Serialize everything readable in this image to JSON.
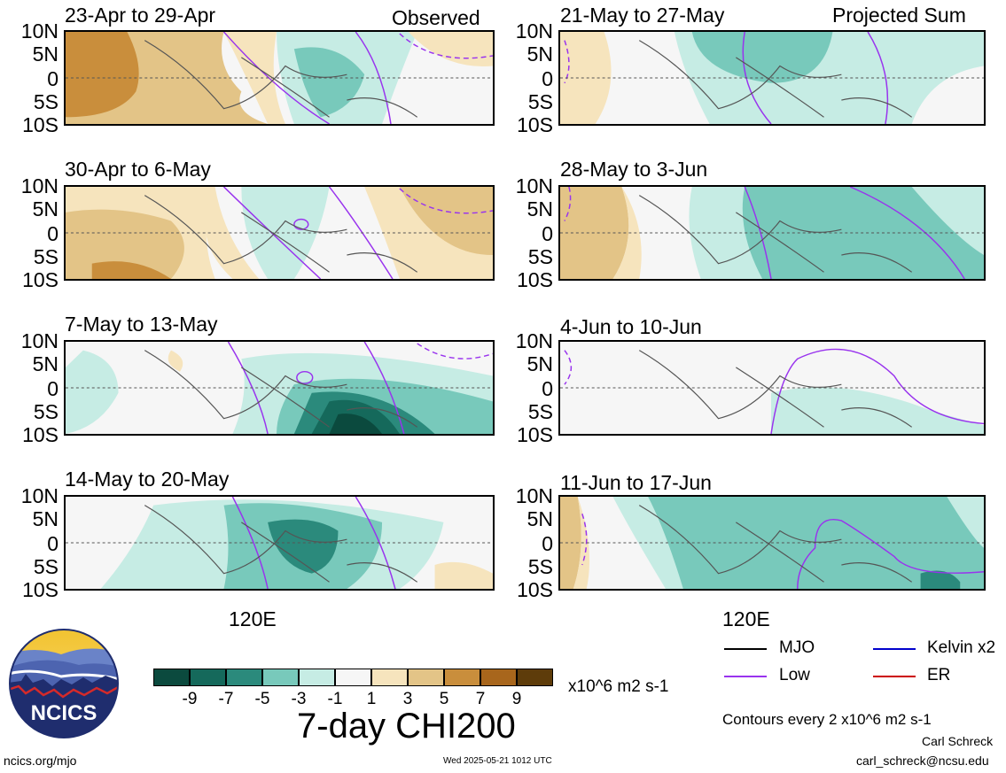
{
  "panels": {
    "left": [
      {
        "title": "23-Apr to 29-Apr",
        "tag": "Observed"
      },
      {
        "title": "30-Apr to 6-May",
        "tag": ""
      },
      {
        "title": "7-May to 13-May",
        "tag": ""
      },
      {
        "title": "14-May to 20-May",
        "tag": ""
      }
    ],
    "right": [
      {
        "title": "21-May to 27-May",
        "tag": "Projected Sum"
      },
      {
        "title": "28-May to 3-Jun",
        "tag": ""
      },
      {
        "title": "4-Jun to 10-Jun",
        "tag": ""
      },
      {
        "title": "11-Jun to 17-Jun",
        "tag": ""
      }
    ]
  },
  "lat_labels": [
    "10N",
    "5N",
    "0",
    "5S",
    "10S"
  ],
  "lon_label": "120E",
  "colorbar": {
    "colors": [
      "#0b4a3e",
      "#15695b",
      "#2b8a7c",
      "#78c9bb",
      "#c6ece4",
      "#f6f6f6",
      "#f6e4bd",
      "#e3c487",
      "#c98e3c",
      "#a8661c",
      "#5e3c0a"
    ],
    "labels": [
      "-9",
      "-7",
      "-5",
      "-3",
      "-1",
      "1",
      "3",
      "5",
      "7",
      "9"
    ],
    "units": "x10^6 m2 s-1",
    "title": "7-day CHI200"
  },
  "legend": [
    {
      "label": "MJO",
      "color": "#000000"
    },
    {
      "label": "Kelvin x2",
      "color": "#0000cc"
    },
    {
      "label": "Low",
      "color": "#9933ee"
    },
    {
      "label": "ER",
      "color": "#cc0000"
    }
  ],
  "contours_note": "Contours every 2 x10^6 m2 s-1",
  "logo_text": "NCICS",
  "footer": {
    "url": "ncics.org/mjo",
    "timestamp": "Wed 2025-05-21 1012 UTC",
    "author": "Carl Schreck",
    "email": "carl_schreck@ncsu.edu"
  }
}
